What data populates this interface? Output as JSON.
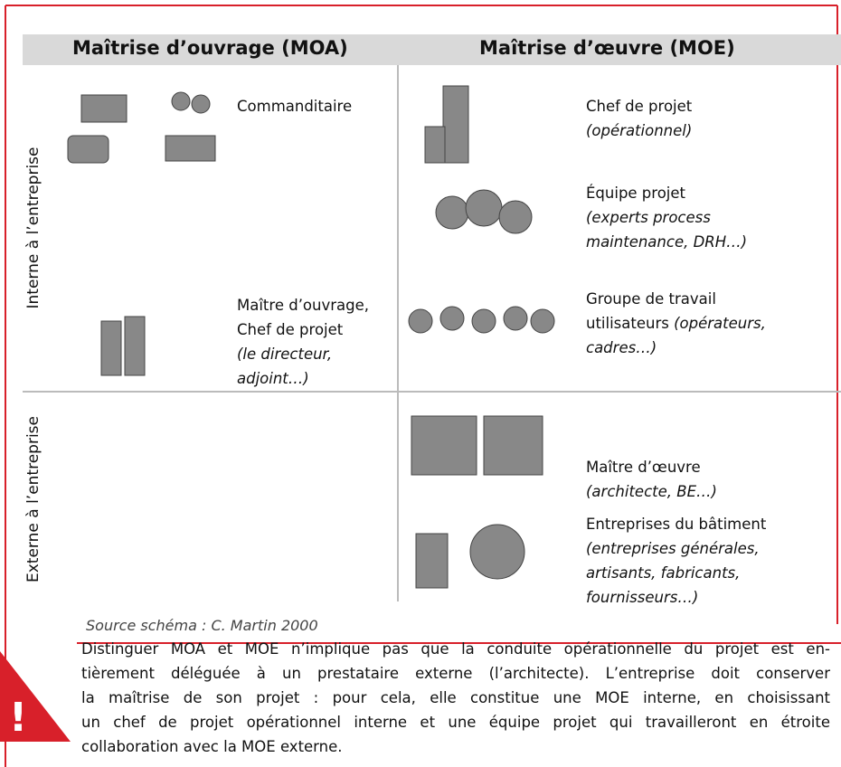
{
  "header": {
    "moa": "Maîtrise d’ouvrage (MOA)",
    "moe": "Maîtrise d’œuvre (MOE)"
  },
  "rows": [
    "Interne à l’entreprise",
    "Externe à l’entreprise"
  ],
  "actors": [
    {
      "role": "Commanditaire"
    },
    {
      "role": "Chef de projet",
      "detail": "(opérationnel)"
    },
    {
      "role": "Équipe projet",
      "detail": "(experts process maintenance, DRH…)"
    },
    {
      "role": "Groupe de travail utilisateurs",
      "detail": "(opérateurs, cadres…)"
    },
    {
      "role": "Maître d’ouvrage, Chef de projet",
      "detail": "(le directeur, adjoint…)"
    },
    {
      "role": "Maître d’œuvre",
      "detail": "(architecte, BE…)"
    },
    {
      "role": "Entreprises du bâtiment",
      "detail": "(entreprises générales, artisants, fabricants, fournisseurs…)"
    }
  ],
  "source": "Source schéma : C. Martin 2000",
  "warning": {
    "symbol": "!",
    "lines": [
      "Distinguer MOA et MOE n’implique pas que la conduite opérationnelle du projet est en-",
      "tièrement déléguée à un prestataire externe (l’architecte). L’entreprise doit conserver",
      "la maîtrise de son projet : pour cela, elle constitue une MOE interne, en choisissant",
      "un chef de projet opérationnel interne et une équipe projet qui travailleront en étroite",
      "collaboration avec la MOE externe."
    ]
  }
}
